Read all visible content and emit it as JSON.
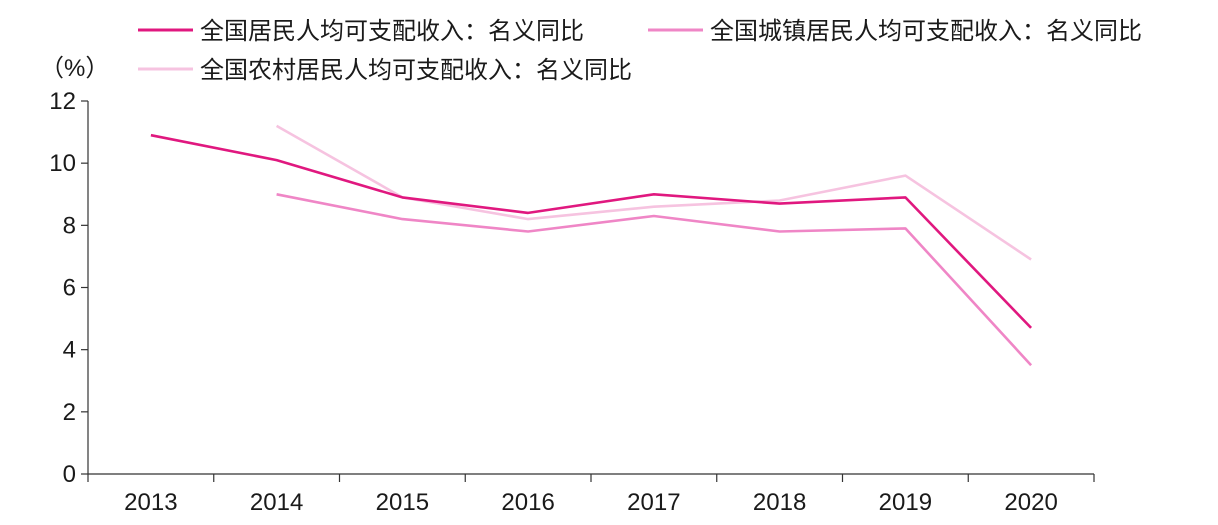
{
  "chart_data": {
    "type": "line",
    "title": "",
    "xlabel": "",
    "ylabel": "（%）",
    "categories": [
      "2013",
      "2014",
      "2015",
      "2016",
      "2017",
      "2018",
      "2019",
      "2020"
    ],
    "ylim": [
      0,
      12
    ],
    "yticks": [
      "0",
      "2",
      "4",
      "6",
      "8",
      "10",
      "12"
    ],
    "grid": false,
    "legend_position": "top",
    "series": [
      {
        "name": "全国居民人均可支配收入：名义同比",
        "color": "#e0187f",
        "values": [
          10.9,
          10.1,
          8.9,
          8.4,
          9.0,
          8.7,
          8.9,
          4.7
        ]
      },
      {
        "name": "全国城镇居民人均可支配收入：名义同比",
        "color": "#ef86c6",
        "values": [
          null,
          9.0,
          8.2,
          7.8,
          8.3,
          7.8,
          7.9,
          3.5
        ]
      },
      {
        "name": "全国农村居民人均可支配收入：名义同比",
        "color": "#f6c3e0",
        "values": [
          null,
          11.2,
          8.9,
          8.2,
          8.6,
          8.8,
          9.6,
          6.9
        ]
      }
    ]
  }
}
